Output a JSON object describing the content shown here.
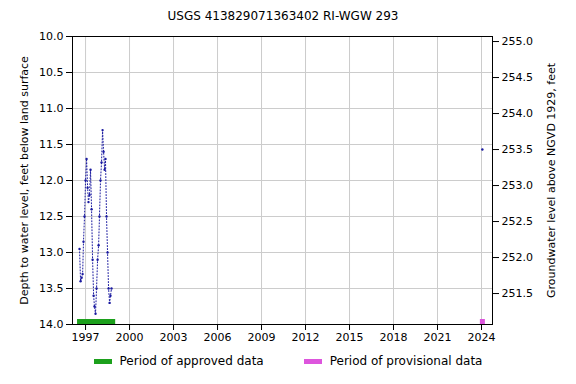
{
  "chart_data": {
    "type": "line",
    "title": "USGS 413829071363402 RI-WGW  293",
    "y_label": "Depth to water level, feet below land surface",
    "y2_label": "Groundwater level above NGVD 1929, feet",
    "x": [
      1996.59,
      1996.66,
      1996.73,
      1996.8,
      1996.86,
      1996.93,
      1997.0,
      1997.07,
      1997.14,
      1997.2,
      1997.27,
      1997.34,
      1997.41,
      1997.48,
      1997.55,
      1997.61,
      1997.68,
      1997.75,
      1997.82,
      1997.89,
      1997.95,
      1998.02,
      1998.09,
      1998.16,
      1998.23,
      1998.3,
      1998.36,
      1998.43,
      1998.5,
      1998.57,
      1998.64,
      1998.7,
      1998.77,
      2011.0,
      2024.06
    ],
    "series": [
      {
        "name": "Depth to water level",
        "color": "#1a1aa0",
        "marker": "dot",
        "line_style": "dotted",
        "values": [
          12.95,
          13.4,
          13.35,
          13.3,
          12.85,
          12.5,
          12.0,
          11.7,
          12.1,
          12.3,
          12.2,
          11.85,
          12.4,
          13.1,
          13.6,
          13.75,
          13.85,
          13.5,
          13.1,
          12.9,
          12.5,
          12.0,
          11.75,
          11.3,
          11.6,
          11.85,
          11.7,
          12.5,
          13.0,
          13.5,
          13.7,
          13.6,
          13.5,
          null,
          11.57
        ]
      }
    ],
    "periods": [
      {
        "name": "Period of approved data",
        "color": "#1ca01c",
        "start": 1996.59,
        "end": 1998.85
      },
      {
        "name": "Period of provisional data",
        "color": "#dd55dd",
        "start": 2024.06,
        "end": 2024.06
      }
    ],
    "xlim": [
      1996.11,
      2024.75
    ],
    "xticks": [
      1997,
      2000,
      2003,
      2006,
      2009,
      2012,
      2015,
      2018,
      2021,
      2024
    ],
    "ylim": [
      10.0,
      14.0
    ],
    "yticks": [
      {
        "value": 10.0,
        "label": "10.0"
      },
      {
        "value": 10.5,
        "label": "10.5"
      },
      {
        "value": 11.0,
        "label": "11.0"
      },
      {
        "value": 11.5,
        "label": "11.5"
      },
      {
        "value": 12.0,
        "label": "12.0"
      },
      {
        "value": 12.5,
        "label": "12.5"
      },
      {
        "value": 13.0,
        "label": "13.0"
      },
      {
        "value": 13.5,
        "label": "13.5"
      },
      {
        "value": 14.0,
        "label": "14.0"
      }
    ],
    "y2lim": [
      255.07,
      251.07
    ],
    "y2ticks": [
      {
        "value": 251.5,
        "label": "251.5"
      },
      {
        "value": 252.0,
        "label": "252.0"
      },
      {
        "value": 252.5,
        "label": "252.5"
      },
      {
        "value": 253.0,
        "label": "253.0"
      },
      {
        "value": 253.5,
        "label": "253.5"
      },
      {
        "value": 254.0,
        "label": "254.0"
      },
      {
        "value": 254.5,
        "label": "254.5"
      },
      {
        "value": 255.0,
        "label": "255.0"
      }
    ],
    "grid": true
  }
}
